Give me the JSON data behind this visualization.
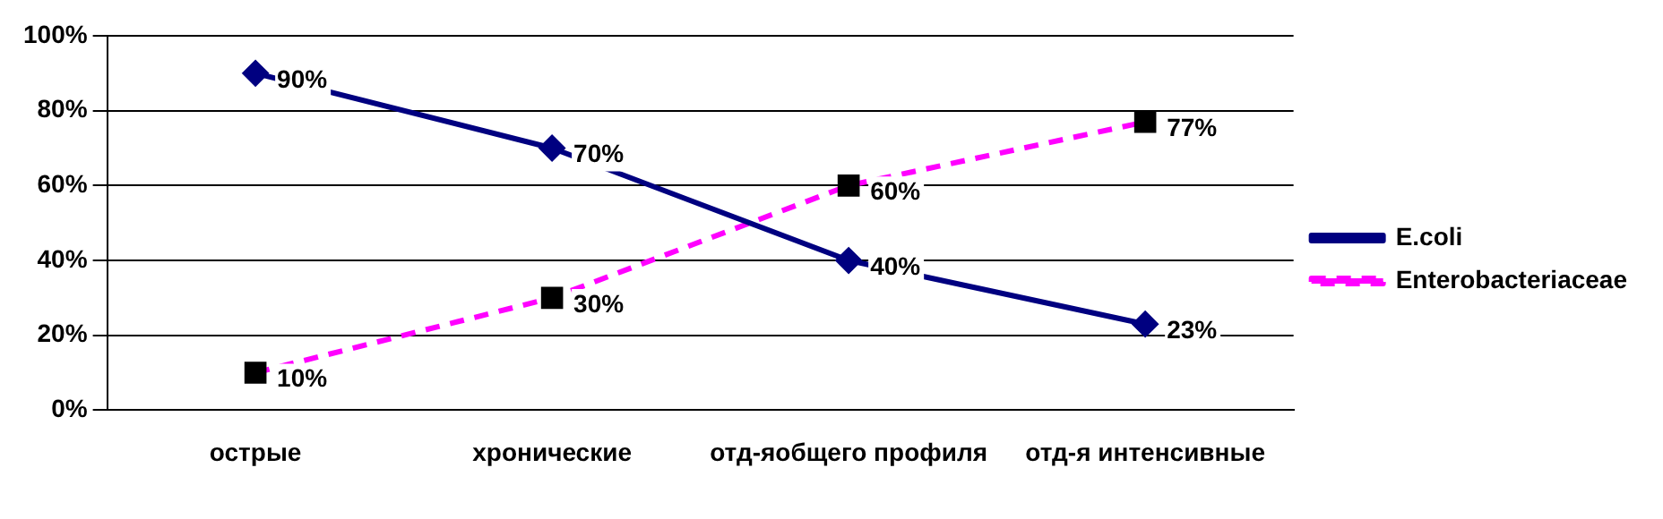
{
  "chart_data": {
    "type": "line",
    "categories": [
      "острые",
      "хронические",
      "отд-яобщего профиля",
      "отд-я интенсивные"
    ],
    "series": [
      {
        "name": "E.coli",
        "color": "#000080",
        "marker": "diamond",
        "line_style": "solid",
        "values": [
          90,
          70,
          40,
          23
        ],
        "value_labels": [
          "90%",
          "70%",
          "40%",
          "23%"
        ]
      },
      {
        "name": "Enterobacteriaceae",
        "color": "#ff00ff",
        "colors": [
          "#000000",
          "#000000",
          "#000000",
          "#000000"
        ],
        "marker": "square",
        "line_style": "dashed",
        "values": [
          10,
          30,
          60,
          77
        ],
        "value_labels": [
          "10%",
          "30%",
          "60%",
          "77%"
        ]
      }
    ],
    "ylim": [
      0,
      100
    ],
    "yticks": [
      {
        "value": 0,
        "label": "0%"
      },
      {
        "value": 20,
        "label": "20%"
      },
      {
        "value": 40,
        "label": "40%"
      },
      {
        "value": 60,
        "label": "60%"
      },
      {
        "value": 80,
        "label": "80%"
      },
      {
        "value": 100,
        "label": "100%"
      }
    ],
    "grid": "y",
    "legend": "right"
  }
}
